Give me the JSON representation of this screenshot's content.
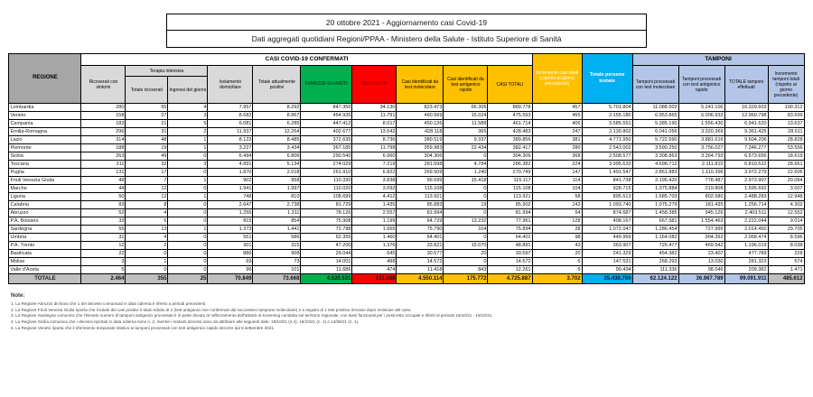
{
  "title": {
    "line1": "20 ottobre 2021 - Aggiornamento casi Covid-19",
    "line2": "Dati aggregati quotidiani Regioni/PPAA - Ministero della Salute - Istituto Superiore di Sanità"
  },
  "table": {
    "headers": {
      "regione": "REGIONE",
      "casi_confermati": "CASI COVID-19 CONFERMATI",
      "tamponi": "TAMPONI",
      "ricoverati": "Ricoverati con sintomi",
      "terapia_intensiva": "Terapia intensiva",
      "totale_ricoverati": "Totale ricoverati",
      "ingressi": "Ingressi del giorno",
      "isolamento": "Isolamento domiciliare",
      "attualmente_positivi": "Totale attualmente positivi",
      "dimessi": "DIMESSI GUARITI",
      "deceduti": "DECEDUTI",
      "casi_molecolare": "Casi identificati da test molecolare",
      "casi_antigenico": "Casi identificati da test antigenico rapido",
      "casi_totali": "CASI TOTALI",
      "incremento_casi": "Incremento casi totali (rispetto al giorno precedente)",
      "persone_testate": "Totale persone testate",
      "tamponi_molecolare": "Tamponi processati con test molecolare",
      "tamponi_antigenico": "Tamponi processati con test antigenico rapido",
      "totale_tamponi": "TOTALE tamponi effettuati",
      "incremento_tamponi": "Incremento tamponi totali (rispetto al giorno precedente)"
    },
    "rows": [
      {
        "regione": "Lombardia",
        "values": [
          "280",
          "55",
          "4",
          "7.957",
          "8.292",
          "847.356",
          "34.130",
          "823.473",
          "66.305",
          "889.778",
          "457",
          "5.701.804",
          "11.088.503",
          "5.241.100",
          "16.329.603",
          "100.312"
        ]
      },
      {
        "regione": "Veneto",
        "values": [
          "158",
          "27",
          "3",
          "8.682",
          "8.867",
          "454.935",
          "11.791",
          "460.569",
          "15.024",
          "475.593",
          "455",
          "2.155.180",
          "6.953.865",
          "6.006.933",
          "12.960.798",
          "83.699"
        ]
      },
      {
        "regione": "Campania",
        "values": [
          "183",
          "21",
          "5",
          "6.081",
          "6.285",
          "447.412",
          "8.017",
          "450.126",
          "11.588",
          "461.714",
          "406",
          "3.585.551",
          "5.385.190",
          "1.556.430",
          "6.941.620",
          "13.637"
        ]
      },
      {
        "regione": "Emilia-Romagna",
        "values": [
          "296",
          "31",
          "2",
          "11.937",
          "12.264",
          "402.677",
          "13.542",
          "428.118",
          "365",
          "428.483",
          "247",
          "2.130.802",
          "6.041.056",
          "3.320.369",
          "9.361.425",
          "28.611"
        ]
      },
      {
        "regione": "Lazio",
        "values": [
          "314",
          "48",
          "1",
          "8.123",
          "8.485",
          "372.635",
          "8.736",
          "380.519",
          "9.337",
          "389.856",
          "381",
          "4.771.950",
          "5.722.590",
          "3.881.616",
          "9.604.206",
          "28.828"
        ]
      },
      {
        "regione": "Piemonte",
        "values": [
          "188",
          "19",
          "1",
          "3.227",
          "3.434",
          "367.185",
          "11.798",
          "359.983",
          "22.434",
          "382.417",
          "280",
          "2.543.002",
          "3.590.250",
          "3.756.027",
          "7.346.277",
          "53.556"
        ]
      },
      {
        "regione": "Sicilia",
        "values": [
          "263",
          "49",
          "0",
          "6.494",
          "6.806",
          "290.540",
          "6.960",
          "304.306",
          "0",
          "304.306",
          "368",
          "2.508.577",
          "3.308.863",
          "3.264.793",
          "6.573.656",
          "18.619"
        ]
      },
      {
        "regione": "Toscana",
        "values": [
          "211",
          "32",
          "3",
          "4.891",
          "5.134",
          "274.029",
          "7.219",
          "281.598",
          "4.784",
          "286.382",
          "224",
          "3.995.632",
          "4.698.712",
          "2.111.810",
          "6.810.522",
          "28.661"
        ]
      },
      {
        "regione": "Puglia",
        "values": [
          "131",
          "17",
          "0",
          "1.870",
          "2.018",
          "261.910",
          "6.822",
          "269.509",
          "1.240",
          "270.749",
          "147",
          "1.491.547",
          "2.861.883",
          "1.110.396",
          "3.972.279",
          "22.606"
        ]
      },
      {
        "regione": "Friuli Venezia Giulia",
        "values": [
          "49",
          "7",
          "1",
          "902",
          "958",
          "110.330",
          "3.838",
          "99.699",
          "15.418",
          "115.117",
          "114",
          "841.738",
          "2.195.420",
          "778.487",
          "2.973.907",
          "20.064"
        ]
      },
      {
        "regione": "Marche",
        "values": [
          "44",
          "12",
          "0",
          "1.941",
          "1.997",
          "110.020",
          "3.092",
          "115.108",
          "0",
          "115.108",
          "104",
          "928.715",
          "1.375.884",
          "219.808",
          "1.595.692",
          "3.007"
        ]
      },
      {
        "regione": "Liguria",
        "values": [
          "50",
          "12",
          "1",
          "748",
          "810",
          "108.699",
          "4.412",
          "113.921",
          "0",
          "113.921",
          "58",
          "895.513",
          "1.685.703",
          "802.580",
          "2.488.283",
          "12.948"
        ]
      },
      {
        "regione": "Calabria",
        "values": [
          "83",
          "8",
          "0",
          "2.647",
          "2.738",
          "81.729",
          "1.435",
          "85.883",
          "19",
          "85.902",
          "143",
          "1.093.740",
          "1.075.279",
          "181.435",
          "1.256.714",
          "4.302"
        ]
      },
      {
        "regione": "Abruzzo",
        "values": [
          "52",
          "4",
          "0",
          "1.255",
          "1.311",
          "78.126",
          "2.557",
          "81.994",
          "0",
          "81.994",
          "54",
          "874.687",
          "1.458.385",
          "945.126",
          "2.403.511",
          "12.552"
        ]
      },
      {
        "regione": "P.A. Bolzano",
        "values": [
          "33",
          "6",
          "0",
          "815",
          "854",
          "75.908",
          "1.199",
          "64.729",
          "13.232",
          "77.961",
          "128",
          "498.167",
          "667.581",
          "1.554.463",
          "2.222.044",
          "9.014"
        ]
      },
      {
        "regione": "Sardegna",
        "values": [
          "55",
          "13",
          "1",
          "1.373",
          "1.441",
          "72.788",
          "1.665",
          "75.790",
          "104",
          "75.894",
          "28",
          "1.072.047",
          "1.286.454",
          "727.996",
          "2.014.450",
          "29.705"
        ]
      },
      {
        "regione": "Umbria",
        "values": [
          "31",
          "4",
          "0",
          "551",
          "586",
          "62.355",
          "1.460",
          "64.401",
          "0",
          "64.401",
          "98",
          "449.999",
          "1.164.082",
          "904.392",
          "2.068.474",
          "8.596"
        ]
      },
      {
        "regione": "P.A. Trento",
        "values": [
          "12",
          "2",
          "0",
          "301",
          "315",
          "47.200",
          "1.376",
          "33.821",
          "15.070",
          "48.891",
          "43",
          "363.907",
          "726.477",
          "469.542",
          "1.196.019",
          "8.038"
        ]
      },
      {
        "regione": "Basilicata",
        "values": [
          "22",
          "0",
          "0",
          "886",
          "908",
          "29.044",
          "645",
          "30.577",
          "20",
          "30.597",
          "20",
          "241.329",
          "454.382",
          "23.407",
          "477.789",
          "228"
        ]
      },
      {
        "regione": "Molise",
        "values": [
          "3",
          "1",
          "0",
          "69",
          "73",
          "14.001",
          "498",
          "14.572",
          "0",
          "14.572",
          "6",
          "147.531",
          "268.293",
          "13.030",
          "281.323",
          "574"
        ]
      },
      {
        "regione": "Valle d'Aosta",
        "values": [
          "5",
          "0",
          "0",
          "96",
          "101",
          "11.686",
          "474",
          "11.418",
          "843",
          "12.261",
          "6",
          "90.434",
          "111.336",
          "98.046",
          "209.382",
          "1.471"
        ]
      }
    ],
    "total": {
      "regione": "TOTALE",
      "values": [
        "2.464",
        "355",
        "25",
        "70.849",
        "73.668",
        "4.520.531",
        "131.688",
        "4.550.114",
        "175.772",
        "4.725.887",
        "3.702",
        "35.430.786",
        "62.124.122",
        "36.967.789",
        "99.091.911",
        "485.612"
      ]
    }
  },
  "notes": {
    "label": "Note:",
    "items": [
      "1. La Regione Abruzzo dichiara che 1 dei decessi comunicati in data odierna è riferito a periodi precedenti.",
      "2. La Regione Friuli Venezia Giulia riporta che il totale dei casi positivi è stato ridotto di 2 (test antigenici non confermati dal successivo tampone molecolare) e a seguito di 1 test positivo rimosso dopo revisione del caso.",
      "3. La Regione Sardegna comunica che l'elevato numero di tamponi antigenici processati è in parte dovuto al rafforzamento dell'attività di screening condotta sul territorio regionale, con tassi funzionali per i posti letto occupati e riferiti al periodo 16/10/21 - 19/10/21.",
      "4. La Regione Sicilia comunica che i decessi riportati in data odierna sono n. 2, mentre i restanti decessi sono da attribuire alle seguenti date: 19/10/21 (n.4), 16/10/21 (n. 1) e 14/08/21 (n. 1).",
      "5. La Regione Veneto riporta che il riferimento temporale relativo ai tamponi processati con test antigenico rapido decorre dal 6 settembre 2021."
    ]
  },
  "colors": {
    "green": "#00b050",
    "red": "#ff0000",
    "orange": "#ffc000",
    "cyan": "#00b0f0",
    "light_blue": "#b4c6e7",
    "gray_header": "#a6a6a6",
    "gray_total": "#bfbfbf"
  }
}
